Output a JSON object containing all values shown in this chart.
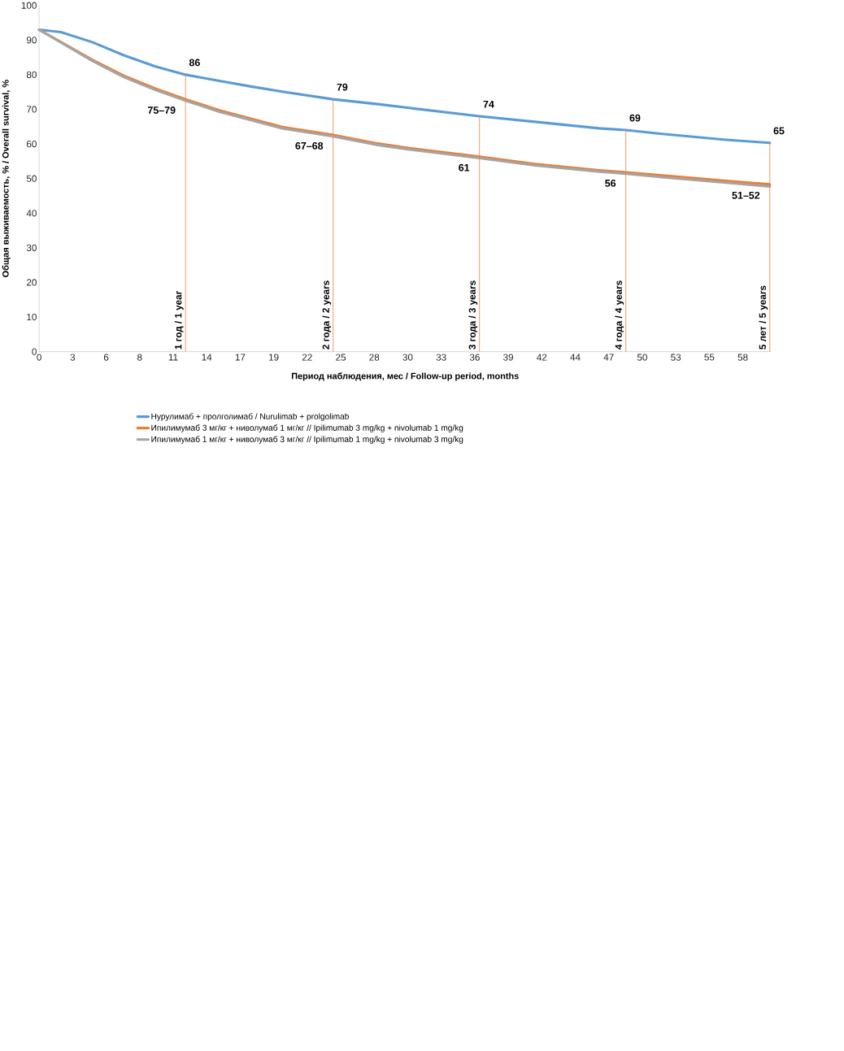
{
  "chart_data": {
    "type": "line",
    "xlabel": "Период наблюдения, мес / Follow-up period, months",
    "ylabel": "Общая выживаемость, % / Overall survival, %",
    "xlim": [
      0,
      60.5
    ],
    "ylim": [
      0,
      100
    ],
    "yticks": [
      0,
      10,
      20,
      30,
      40,
      50,
      60,
      70,
      80,
      90,
      100
    ],
    "xticks": [
      {
        "value": 0,
        "label": "0"
      },
      {
        "value": 2.77,
        "label": "3"
      },
      {
        "value": 5.54,
        "label": "6"
      },
      {
        "value": 8.31,
        "label": "8"
      },
      {
        "value": 11.08,
        "label": "11"
      },
      {
        "value": 13.85,
        "label": "14"
      },
      {
        "value": 16.62,
        "label": "17"
      },
      {
        "value": 19.39,
        "label": "19"
      },
      {
        "value": 22.16,
        "label": "22"
      },
      {
        "value": 24.93,
        "label": "25"
      },
      {
        "value": 27.7,
        "label": "28"
      },
      {
        "value": 30.47,
        "label": "30"
      },
      {
        "value": 33.24,
        "label": "33"
      },
      {
        "value": 36.01,
        "label": "36"
      },
      {
        "value": 38.78,
        "label": "39"
      },
      {
        "value": 41.55,
        "label": "42"
      },
      {
        "value": 44.32,
        "label": "44"
      },
      {
        "value": 47.09,
        "label": "47"
      },
      {
        "value": 49.86,
        "label": "50"
      },
      {
        "value": 52.63,
        "label": "53"
      },
      {
        "value": 55.4,
        "label": "55"
      },
      {
        "value": 58.17,
        "label": "58"
      }
    ],
    "grid": false,
    "legend": "bottom",
    "marker": "none",
    "line_style": "solid",
    "series": [
      {
        "name": "Нурулимаб + пролголимаб / Nurulimab + prolgolimab",
        "color": "#5b9bd5",
        "x": [
          0,
          1.8,
          4.4,
          7.0,
          9.6,
          12.1,
          14.9,
          17.5,
          20.1,
          24.3,
          28.0,
          30.6,
          36.4,
          41.0,
          46.3,
          48.5,
          51.5,
          56.8,
          60.4
        ],
        "values": [
          93,
          92.3,
          89.4,
          85.6,
          82.4,
          80,
          78.2,
          76.6,
          75.1,
          72.9,
          71.5,
          70.4,
          68,
          66.4,
          64.5,
          64,
          62.9,
          61.2,
          60.3
        ]
      },
      {
        "name": "Ипилимумаб 3 мг/кг + ниволумаб 1 мг/кг // Ipilimumab 3 mg/kg + nivolumab 1 mg/kg",
        "color": "#ed7d31",
        "x": [
          0,
          4.4,
          7.0,
          9.6,
          12.1,
          14.9,
          17.5,
          20.1,
          24.3,
          28.0,
          30.6,
          36.4,
          41.0,
          46.3,
          48.5,
          51.5,
          56.8,
          60.4
        ],
        "values": [
          93,
          84.3,
          79.7,
          76,
          72.9,
          69.7,
          67.3,
          64.9,
          62.6,
          60.1,
          58.8,
          56.3,
          54.2,
          52.4,
          51.8,
          50.9,
          49.3,
          48.3
        ]
      },
      {
        "name": "Ипилимумаб 1 мг/кг + ниволумаб 3 мг/кг // Ipilimumab 1 mg/kg + nivolumab 3 mg/kg",
        "color": "#a5a5a5",
        "x": [
          0,
          4.4,
          7.0,
          9.6,
          12.1,
          14.9,
          17.5,
          20.1,
          24.3,
          28.0,
          30.6,
          36.4,
          41.0,
          46.3,
          48.5,
          51.5,
          56.8,
          60.4
        ],
        "values": [
          93,
          84.0,
          79.3,
          75.6,
          72.5,
          69.3,
          66.9,
          64.5,
          62.2,
          59.7,
          58.4,
          55.9,
          53.8,
          52.0,
          51.4,
          50.4,
          48.8,
          47.7
        ]
      }
    ],
    "ref_lines": [
      {
        "axis": "x",
        "value": 12.1,
        "label": "1 год / 1 year",
        "color": "#ed7d31"
      },
      {
        "axis": "x",
        "value": 24.3,
        "label": "2 года / 2 years",
        "color": "#ed7d31"
      },
      {
        "axis": "x",
        "value": 36.4,
        "label": "3 года / 3 years",
        "color": "#ed7d31"
      },
      {
        "axis": "x",
        "value": 48.5,
        "label": "4 года / 4 years",
        "color": "#ed7d31"
      },
      {
        "axis": "x",
        "value": 60.4,
        "label": "5 лет / 5 years",
        "color": "#ed7d31"
      }
    ],
    "annotations": [
      {
        "text": "86",
        "x": 12.1,
        "y": 80
      },
      {
        "text": "75–79",
        "x": 12.1,
        "y": 72.9
      },
      {
        "text": "79",
        "x": 24.3,
        "y": 72.9
      },
      {
        "text": "67–68",
        "x": 24.3,
        "y": 62.6
      },
      {
        "text": "74",
        "x": 36.4,
        "y": 68
      },
      {
        "text": "61",
        "x": 36.4,
        "y": 56.3
      },
      {
        "text": "69",
        "x": 48.5,
        "y": 64
      },
      {
        "text": "56",
        "x": 48.5,
        "y": 51.8
      },
      {
        "text": "65",
        "x": 60.4,
        "y": 60.3
      },
      {
        "text": "51–52",
        "x": 60.4,
        "y": 48.3
      }
    ]
  }
}
